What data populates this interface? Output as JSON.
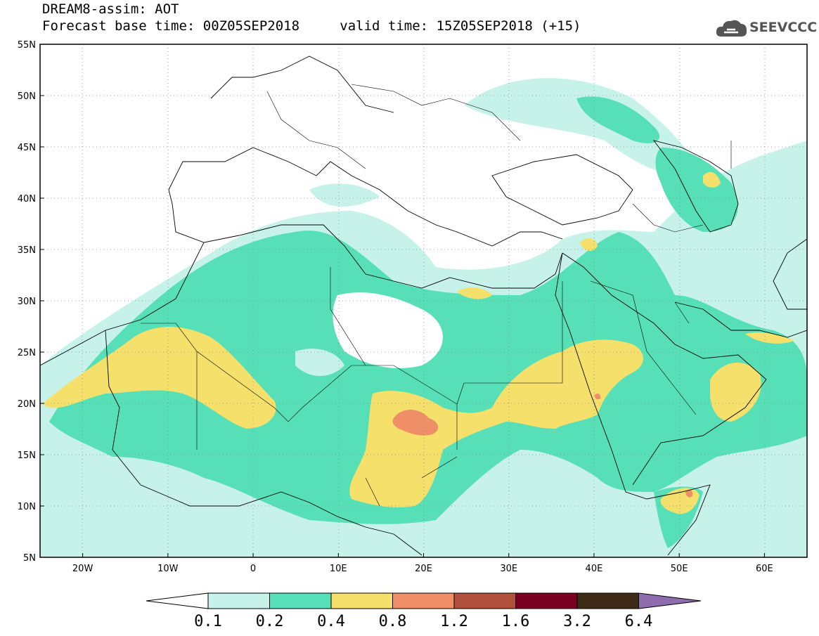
{
  "header": {
    "model_line": "DREAM8-assim: AOT",
    "base_time_label": "Forecast base time:",
    "base_time": "00Z05SEP2018",
    "valid_time_label": "valid time:",
    "valid_time": "15Z05SEP2018 (+15)"
  },
  "logo": {
    "text": "SEEVCCC",
    "icon": "cloud-logo-icon"
  },
  "map": {
    "lat_ticks": [
      "55N",
      "50N",
      "45N",
      "40N",
      "35N",
      "30N",
      "25N",
      "20N",
      "15N",
      "10N",
      "5N"
    ],
    "lon_ticks": [
      "20W",
      "10W",
      "0",
      "10E",
      "20E",
      "30E",
      "40E",
      "50E",
      "60E"
    ],
    "lat_range": [
      5,
      55
    ],
    "lon_range": [
      -25,
      65
    ],
    "grid": true
  },
  "colorbar": {
    "labels": [
      "0.1",
      "0.2",
      "0.4",
      "0.8",
      "1.2",
      "1.6",
      "3.2",
      "6.4"
    ],
    "colors": [
      "#ffffff",
      "#c6f2ea",
      "#57e0b8",
      "#f4e06a",
      "#ef8f67",
      "#b0503d",
      "#7a0022",
      "#3d2a17",
      "#8e6cae"
    ]
  }
}
